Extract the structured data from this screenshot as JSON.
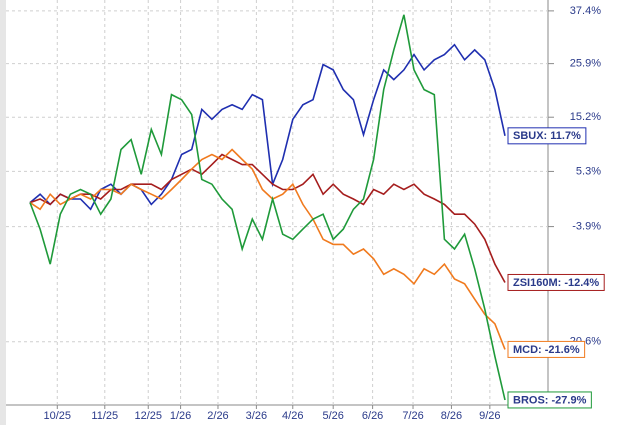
{
  "chart_data": {
    "type": "line",
    "log_scale": true,
    "grid": true,
    "x": [
      0,
      1,
      2,
      3,
      4,
      5,
      6,
      7,
      8,
      9,
      10,
      11,
      12,
      13,
      14,
      15,
      16,
      17,
      18,
      19,
      20,
      21,
      22,
      23,
      24,
      25,
      26,
      27,
      28,
      29,
      30,
      31,
      32,
      33,
      34,
      35,
      36,
      37,
      38,
      39,
      40,
      41,
      42,
      43,
      44,
      45,
      46,
      47
    ],
    "xlim": [
      0,
      47
    ],
    "xticks": [
      {
        "value": 2.7,
        "label": "10/25"
      },
      {
        "value": 7.4,
        "label": "11/25"
      },
      {
        "value": 11.7,
        "label": "12/25"
      },
      {
        "value": 14.9,
        "label": "1/26"
      },
      {
        "value": 18.6,
        "label": "2/26"
      },
      {
        "value": 22.4,
        "label": "3/26"
      },
      {
        "value": 26.0,
        "label": "4/26"
      },
      {
        "value": 30.0,
        "label": "5/26"
      },
      {
        "value": 33.9,
        "label": "6/26"
      },
      {
        "value": 37.9,
        "label": "7/26"
      },
      {
        "value": 41.7,
        "label": "8/26"
      },
      {
        "value": 45.5,
        "label": "9/26"
      }
    ],
    "ylim": [
      -28.5,
      39.9
    ],
    "yticks": [
      {
        "value": 37.4,
        "label": "37.4%"
      },
      {
        "value": 25.9,
        "label": "25.9%"
      },
      {
        "value": 15.2,
        "label": "15.2%"
      },
      {
        "value": 5.3,
        "label": "5.3%"
      },
      {
        "value": -3.9,
        "label": "-3.9%"
      },
      {
        "value": -20.6,
        "label": "-20.6%"
      }
    ],
    "series": [
      {
        "name": "SBUX: 11.7%",
        "color": "#1f2fb0",
        "values": [
          0,
          1.4,
          -0.3,
          1.4,
          0.6,
          0.6,
          -1.1,
          2.2,
          3.1,
          1.4,
          3.1,
          2.2,
          -0.3,
          1.4,
          3.9,
          8.3,
          9.2,
          16.7,
          14.8,
          16.7,
          17.6,
          16.7,
          19.6,
          18.6,
          3.1,
          7.4,
          14.8,
          17.6,
          18.6,
          25.7,
          24.6,
          20.6,
          18.6,
          11.9,
          18.6,
          24.6,
          22.6,
          24.6,
          27.8,
          24.6,
          26.7,
          27.8,
          29.9,
          26.7,
          28.8,
          26.7,
          20.6,
          11.7
        ]
      },
      {
        "name": "ZSI160M: -12.4%",
        "color": "#a51d1d",
        "values": [
          0,
          0.6,
          -0.3,
          1.4,
          0.6,
          1.4,
          1.4,
          0.6,
          2.2,
          2.2,
          3.1,
          3.1,
          3.1,
          2.2,
          3.9,
          4.8,
          5.7,
          4.8,
          6.5,
          8.3,
          7.4,
          6.5,
          6.5,
          4.8,
          3.1,
          2.2,
          2.2,
          3.1,
          4.8,
          1.4,
          3.1,
          1.4,
          0.6,
          -0.3,
          2.2,
          1.4,
          3.1,
          2.2,
          3.1,
          1.4,
          0.6,
          -0.3,
          -1.9,
          -1.9,
          -3.5,
          -5.9,
          -9.7,
          -12.4
        ]
      },
      {
        "name": "MCD: -21.6%",
        "color": "#f07a1e",
        "values": [
          0,
          -1.1,
          1.4,
          -0.3,
          0.6,
          1.4,
          0.6,
          2.2,
          2.2,
          1.4,
          3.1,
          2.2,
          1.4,
          0.6,
          2.2,
          3.9,
          5.7,
          7.4,
          8.3,
          7.4,
          9.2,
          7.4,
          5.7,
          2.2,
          0.6,
          1.4,
          3.1,
          -0.3,
          -2.7,
          -5.9,
          -6.7,
          -6.7,
          -8.2,
          -7.4,
          -8.9,
          -11.2,
          -10.4,
          -11.2,
          -12.6,
          -10.4,
          -11.2,
          -9.7,
          -11.9,
          -12.6,
          -14.8,
          -16.9,
          -18.2,
          -21.6
        ]
      },
      {
        "name": "BROS: -27.9%",
        "color": "#1f9a3a",
        "values": [
          0,
          -4.3,
          -9.7,
          -1.9,
          1.4,
          2.2,
          1.4,
          -1.9,
          0.6,
          9.2,
          11.0,
          4.8,
          12.9,
          8.3,
          19.6,
          18.6,
          15.7,
          3.9,
          3.1,
          0.6,
          -1.1,
          -7.4,
          -2.7,
          -5.9,
          0.6,
          -5.1,
          -5.9,
          -4.3,
          -2.7,
          -1.9,
          -5.9,
          -4.3,
          -1.1,
          0.6,
          7.4,
          20.6,
          28.8,
          36.5,
          24.6,
          20.6,
          19.6,
          -5.9,
          -7.4,
          -5.1,
          -10.4,
          -16.2,
          -22.5,
          -27.9
        ]
      }
    ]
  }
}
